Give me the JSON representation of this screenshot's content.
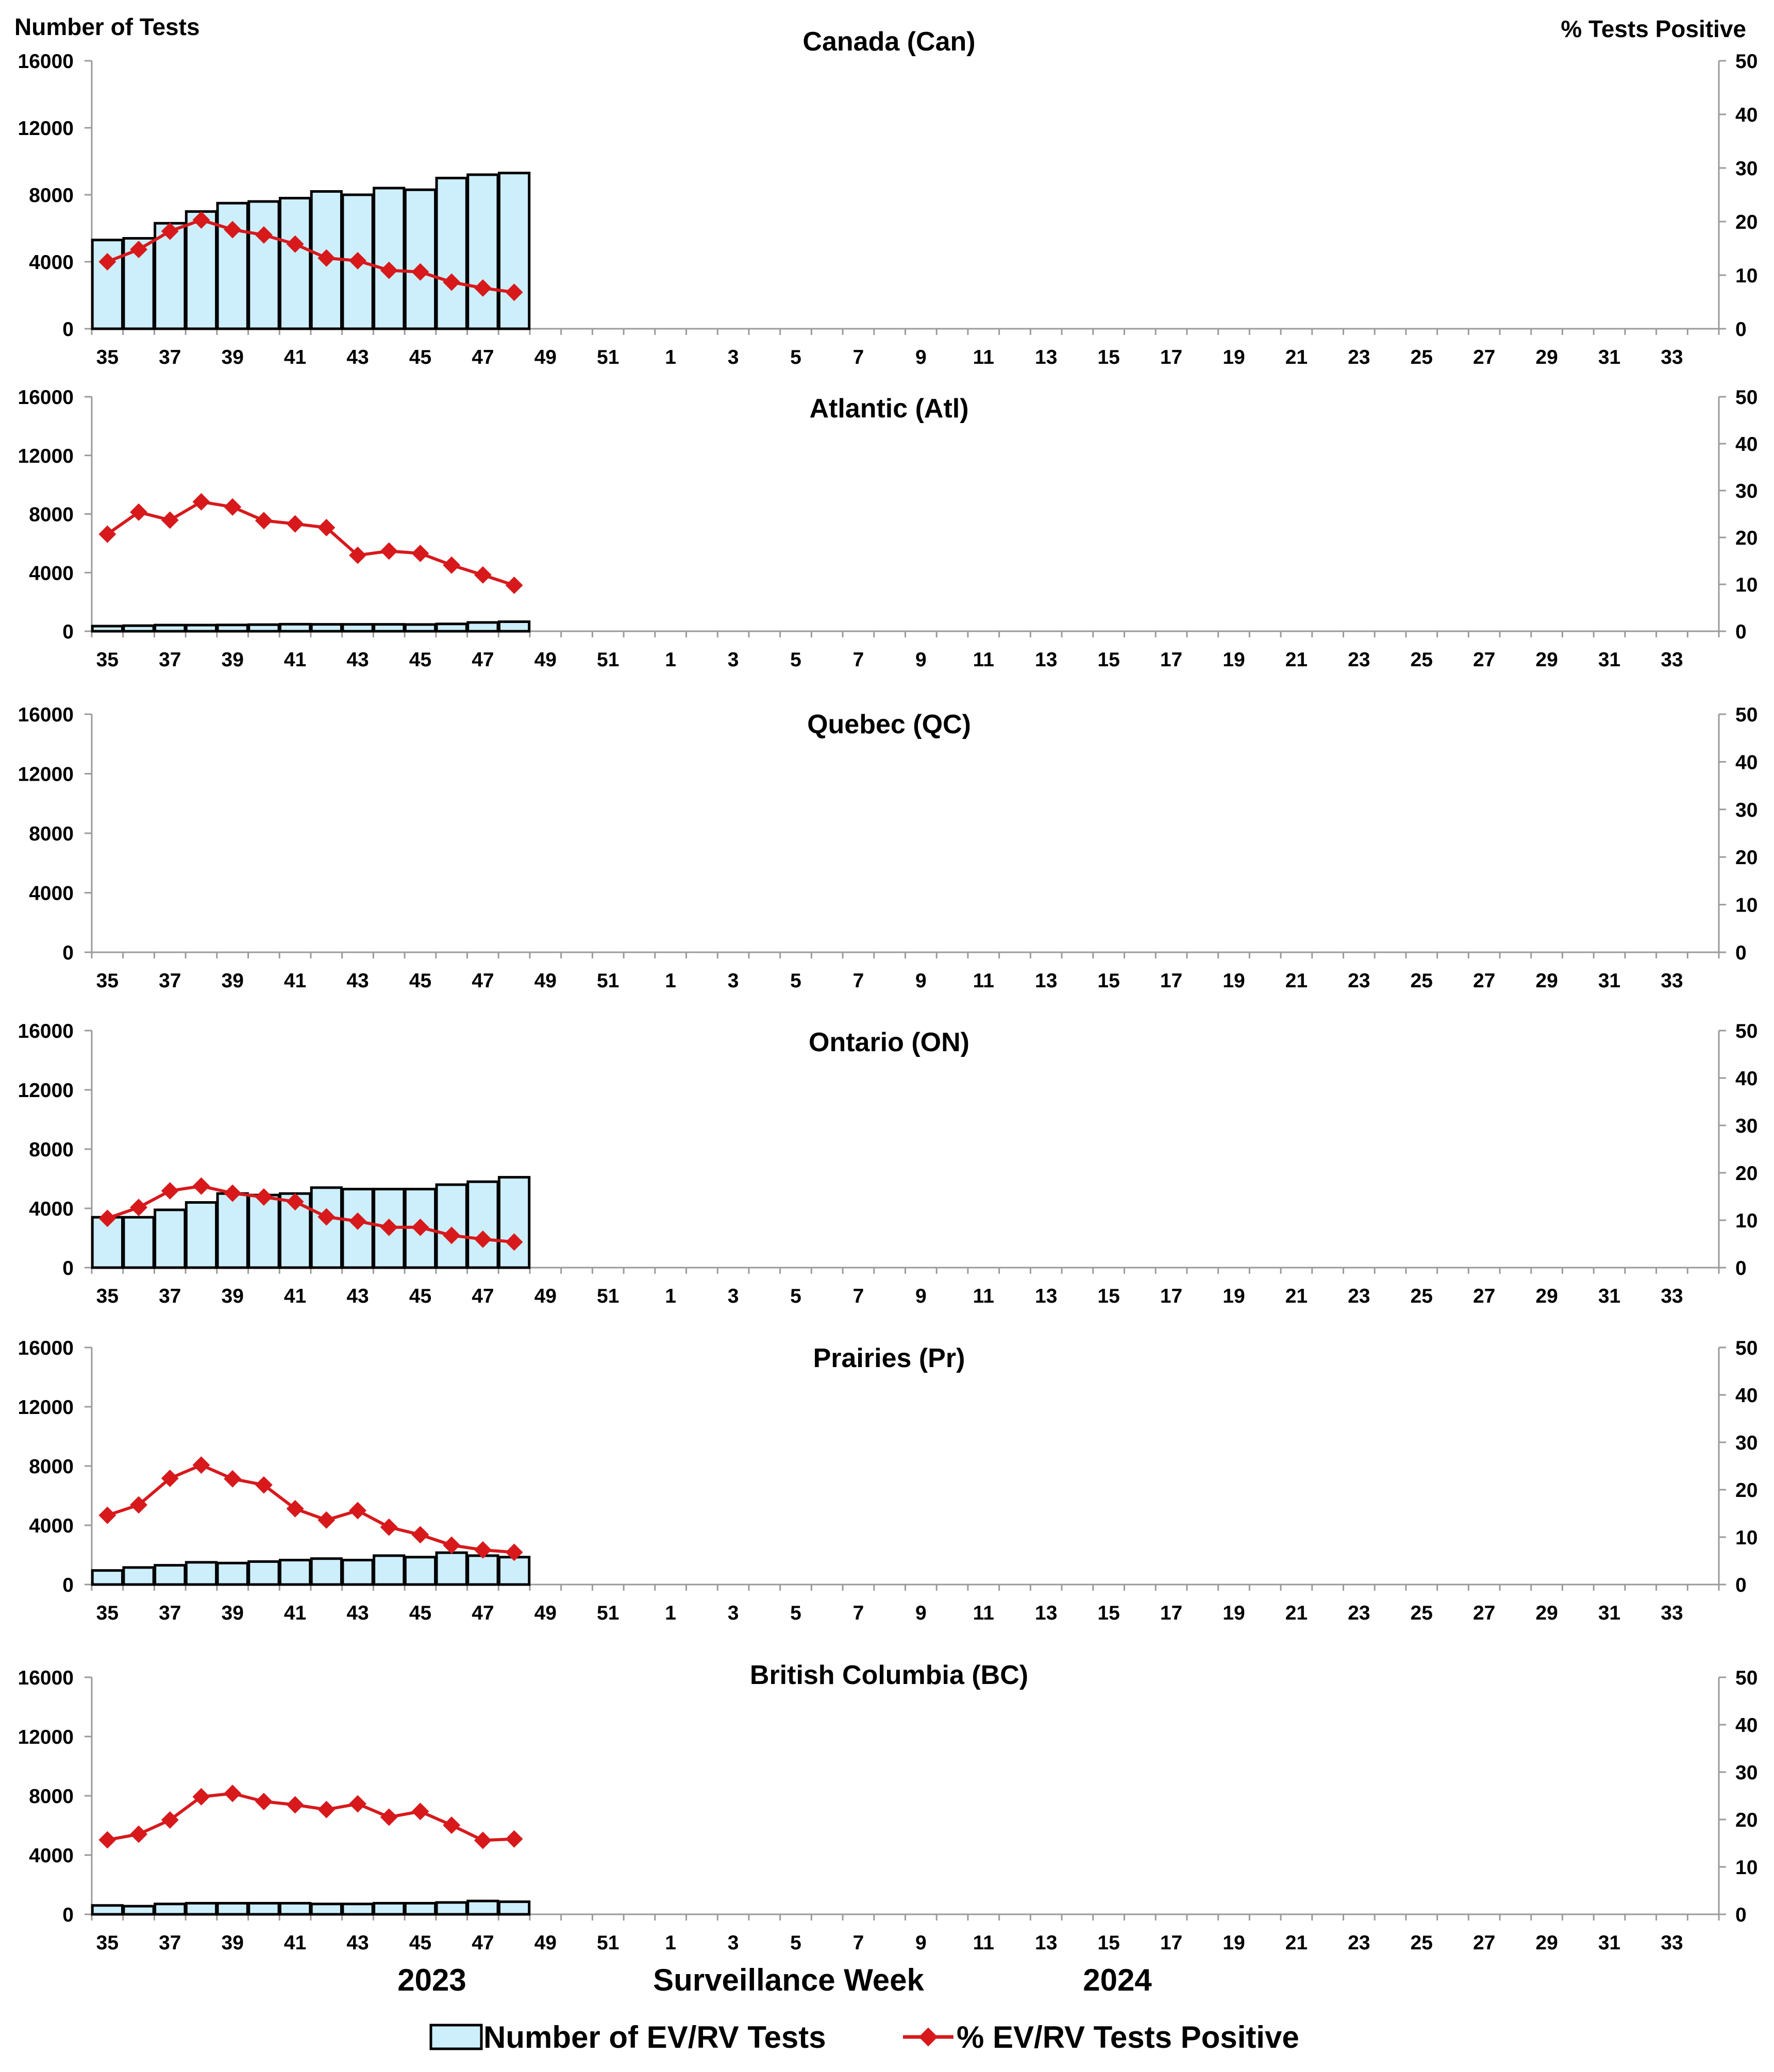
{
  "chart_data": {
    "type": "bar+line (dual-axis, small multiples)",
    "left_axis_label": "Number of Tests",
    "right_axis_label": "% Tests Positive",
    "xlabel": "Surveillance Week",
    "season_labels": [
      "2023",
      "2024"
    ],
    "left_ylim": [
      0,
      16000
    ],
    "left_ticks": [
      "0",
      "4000",
      "8000",
      "12000",
      "16000"
    ],
    "right_ylim": [
      0,
      50
    ],
    "right_ticks": [
      "0",
      "10",
      "20",
      "30",
      "40",
      "50"
    ],
    "weeks": [
      35,
      36,
      37,
      38,
      39,
      40,
      41,
      42,
      43,
      44,
      45,
      46,
      47,
      48,
      49,
      50,
      51,
      52,
      1,
      2,
      3,
      4,
      5,
      6,
      7,
      8,
      9,
      10,
      11,
      12,
      13,
      14,
      15,
      16,
      17,
      18,
      19,
      20,
      21,
      22,
      23,
      24,
      25,
      26,
      27,
      28,
      29,
      30,
      31,
      32,
      33,
      34
    ],
    "x_tick_labels": [
      "35",
      "37",
      "39",
      "41",
      "43",
      "45",
      "47",
      "49",
      "51",
      "1",
      "3",
      "5",
      "7",
      "9",
      "11",
      "13",
      "15",
      "17",
      "19",
      "21",
      "23",
      "25",
      "27",
      "29",
      "31",
      "33"
    ],
    "legend": {
      "bars": "Number of EV/RV Tests",
      "line": "% EV/RV Tests Positive"
    },
    "colors": {
      "bar_fill": "#cdeefb",
      "bar_stroke": "#000000",
      "line": "#d7191c"
    },
    "panels": [
      {
        "title": "Canada (Can)",
        "tests": [
          5300,
          5400,
          6300,
          7000,
          7500,
          7600,
          7800,
          8200,
          8000,
          8400,
          8300,
          9000,
          9200,
          9300
        ],
        "percent_positive": [
          12.5,
          14.8,
          18.2,
          20.3,
          18.5,
          17.5,
          15.8,
          13.2,
          12.7,
          10.9,
          10.6,
          8.7,
          7.6,
          6.8
        ]
      },
      {
        "title": "Atlantic (Atl)",
        "tests": [
          350,
          380,
          420,
          420,
          430,
          450,
          480,
          470,
          470,
          470,
          460,
          500,
          600,
          650
        ],
        "percent_positive": [
          20.7,
          25.4,
          23.7,
          27.6,
          26.5,
          23.6,
          22.9,
          22.1,
          16.2,
          17.1,
          16.6,
          14.1,
          12.0,
          9.8
        ]
      },
      {
        "title": "Quebec (QC)",
        "tests": [],
        "percent_positive": []
      },
      {
        "title": "Ontario (ON)",
        "tests": [
          3400,
          3400,
          3900,
          4400,
          5000,
          4900,
          5000,
          5400,
          5300,
          5300,
          5300,
          5600,
          5800,
          6100
        ],
        "percent_positive": [
          10.4,
          12.7,
          16.2,
          17.2,
          15.7,
          14.9,
          13.9,
          10.7,
          9.8,
          8.5,
          8.5,
          6.8,
          6.0,
          5.4
        ]
      },
      {
        "title": "Prairies (Pr)",
        "tests": [
          950,
          1150,
          1300,
          1500,
          1450,
          1550,
          1650,
          1750,
          1650,
          1950,
          1850,
          2150,
          1950,
          1850
        ],
        "percent_positive": [
          14.6,
          16.8,
          22.4,
          25.2,
          22.3,
          21.0,
          16.0,
          13.6,
          15.6,
          12.1,
          10.5,
          8.3,
          7.3,
          6.8
        ]
      },
      {
        "title": "British Columbia (BC)",
        "tests": [
          600,
          550,
          700,
          750,
          750,
          750,
          750,
          700,
          700,
          750,
          750,
          800,
          900,
          850
        ],
        "percent_positive": [
          15.7,
          16.9,
          19.9,
          24.8,
          25.5,
          23.8,
          23.1,
          22.1,
          23.3,
          20.5,
          21.7,
          18.8,
          15.6,
          15.9
        ]
      }
    ]
  }
}
